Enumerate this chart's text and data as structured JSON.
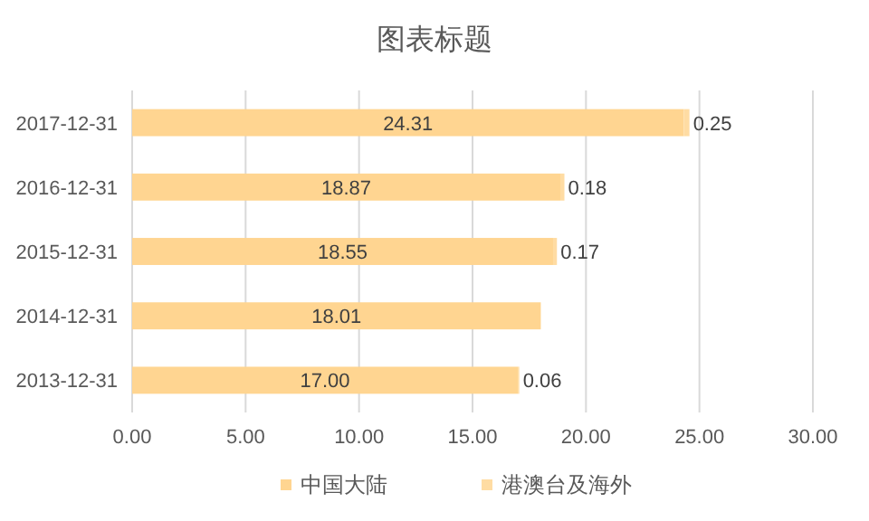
{
  "chart_data": {
    "type": "bar",
    "orientation": "horizontal",
    "stacked": true,
    "title": "图表标题",
    "categories": [
      "2017-12-31",
      "2016-12-31",
      "2015-12-31",
      "2014-12-31",
      "2013-12-31"
    ],
    "series": [
      {
        "name": "中国大陆",
        "color": "#ffd591",
        "values": [
          24.31,
          18.87,
          18.55,
          18.01,
          17.0
        ],
        "value_labels": [
          "24.31",
          "18.87",
          "18.55",
          "18.01",
          "17.00"
        ]
      },
      {
        "name": "港澳台及海外",
        "color": "#ffdca3",
        "values": [
          0.25,
          0.18,
          0.17,
          null,
          0.06
        ],
        "value_labels": [
          "0.25",
          "0.18",
          "0.17",
          null,
          "0.06"
        ]
      }
    ],
    "xlim": [
      0,
      30
    ],
    "xticks": [
      {
        "value": 0,
        "label": "0.00"
      },
      {
        "value": 5,
        "label": "5.00"
      },
      {
        "value": 10,
        "label": "10.00"
      },
      {
        "value": 15,
        "label": "15.00"
      },
      {
        "value": 20,
        "label": "20.00"
      },
      {
        "value": 25,
        "label": "25.00"
      },
      {
        "value": 30,
        "label": "30.00"
      }
    ],
    "grid": "x",
    "legend": "bottom"
  }
}
